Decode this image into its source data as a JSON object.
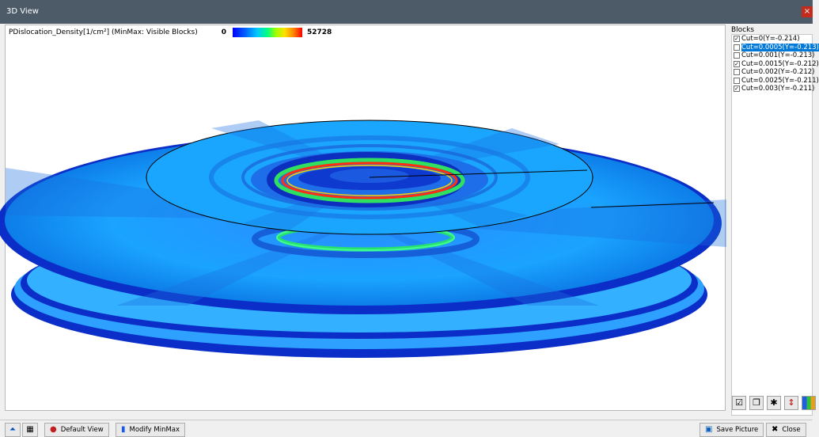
{
  "window": {
    "title": "3D View",
    "close_glyph": "×"
  },
  "legend": {
    "variable": "PDislocation_Density[1/cm²]  (MinMax: Visible Blocks)",
    "min": "0",
    "max": "52728"
  },
  "blocks": {
    "header": "Blocks",
    "items": [
      {
        "label": "Cut=0(Y=-0.214)",
        "checked": true,
        "selected": false
      },
      {
        "label": "Cut=0.0005(Y=-0.213)",
        "checked": false,
        "selected": true
      },
      {
        "label": "Cut=0.001(Y=-0.213)",
        "checked": false,
        "selected": false
      },
      {
        "label": "Cut=0.0015(Y=-0.212)",
        "checked": true,
        "selected": false
      },
      {
        "label": "Cut=0.002(Y=-0.212)",
        "checked": false,
        "selected": false
      },
      {
        "label": "Cut=0.0025(Y=-0.211)",
        "checked": false,
        "selected": false
      },
      {
        "label": "Cut=0.003(Y=-0.211)",
        "checked": true,
        "selected": false
      }
    ]
  },
  "toolbar": {
    "default_view": "Default View",
    "modify_minmax": "Modify MinMax",
    "save_picture": "Save Picture",
    "close": "Close"
  },
  "icons": {
    "perspective": "perspective-icon",
    "grid": "grid-icon",
    "default_view": "default-view-icon",
    "modify_minmax": "bar-chart-icon",
    "save_picture": "save-picture-icon",
    "close": "close-x-icon"
  },
  "colors": {
    "titlebar": "#4d5b69",
    "disc_fill": "#1e9bff",
    "disc_rim": "#0b2ec8",
    "selection": "#0078d7"
  }
}
